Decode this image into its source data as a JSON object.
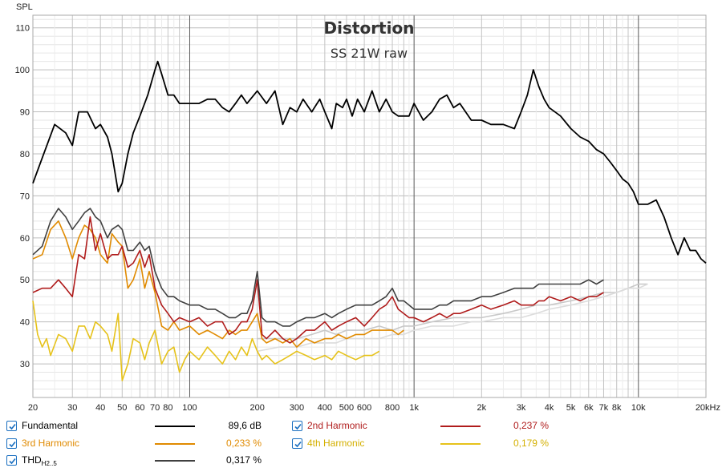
{
  "chart_data": {
    "type": "line",
    "title": "Distortion",
    "subtitle": "SS 21W raw",
    "ylabel": "SPL",
    "xlabel": "",
    "x_scale": "log",
    "xlim": [
      20,
      20000
    ],
    "ylim": [
      22,
      113
    ],
    "y_ticks": [
      30,
      40,
      50,
      60,
      70,
      80,
      90,
      100,
      110
    ],
    "x_ticks": [
      {
        "v": 20,
        "t": "20"
      },
      {
        "v": 30,
        "t": "30"
      },
      {
        "v": 40,
        "t": "40"
      },
      {
        "v": 50,
        "t": "50"
      },
      {
        "v": 60,
        "t": "60"
      },
      {
        "v": 70,
        "t": "70"
      },
      {
        "v": 80,
        "t": "80"
      },
      {
        "v": 100,
        "t": "100"
      },
      {
        "v": 200,
        "t": "200"
      },
      {
        "v": 300,
        "t": "300"
      },
      {
        "v": 400,
        "t": "400"
      },
      {
        "v": 500,
        "t": "500"
      },
      {
        "v": 600,
        "t": "600"
      },
      {
        "v": 800,
        "t": "800"
      },
      {
        "v": 1000,
        "t": "1k"
      },
      {
        "v": 2000,
        "t": "2k"
      },
      {
        "v": 3000,
        "t": "3k"
      },
      {
        "v": 4000,
        "t": "4k"
      },
      {
        "v": 5000,
        "t": "5k"
      },
      {
        "v": 6000,
        "t": "6k"
      },
      {
        "v": 7000,
        "t": "7k"
      },
      {
        "v": 8000,
        "t": "8k"
      },
      {
        "v": 10000,
        "t": "10k"
      },
      {
        "v": 20000,
        "t": "20kHz"
      }
    ],
    "grid": true,
    "legend_position": "bottom",
    "series": [
      {
        "name": "Fundamental",
        "color": "#000000",
        "value_label": "89,6 dB",
        "x": [
          20,
          22,
          25,
          28,
          30,
          32,
          35,
          38,
          40,
          43,
          45,
          48,
          50,
          53,
          56,
          60,
          65,
          70,
          72,
          75,
          80,
          85,
          90,
          100,
          110,
          120,
          130,
          140,
          150,
          160,
          170,
          180,
          200,
          220,
          240,
          260,
          280,
          300,
          320,
          350,
          380,
          400,
          430,
          450,
          480,
          500,
          530,
          560,
          600,
          650,
          700,
          750,
          800,
          850,
          900,
          950,
          1000,
          1100,
          1200,
          1300,
          1400,
          1500,
          1600,
          1800,
          2000,
          2200,
          2500,
          2800,
          3000,
          3200,
          3400,
          3600,
          3800,
          4000,
          4500,
          5000,
          5500,
          6000,
          6500,
          7000,
          7500,
          8000,
          8500,
          9000,
          9500,
          10000,
          10500,
          11000,
          12000,
          13000,
          14000,
          15000,
          16000,
          17000,
          18000,
          19000,
          20000
        ],
        "y": [
          73,
          79,
          87,
          85,
          82,
          90,
          90,
          86,
          87,
          84,
          80,
          71,
          73,
          80,
          85,
          89,
          94,
          100,
          102,
          99,
          94,
          94,
          92,
          92,
          92,
          93,
          93,
          91,
          90,
          92,
          94,
          92,
          95,
          92,
          95,
          87,
          91,
          90,
          93,
          90,
          93,
          90,
          86,
          92,
          91,
          93,
          89,
          93,
          90,
          95,
          90,
          93,
          90,
          89,
          89,
          89,
          92,
          88,
          90,
          93,
          94,
          91,
          92,
          88,
          88,
          87,
          87,
          86,
          90,
          94,
          100,
          96,
          93,
          91,
          89,
          86,
          84,
          83,
          81,
          80,
          78,
          76,
          74,
          73,
          71,
          68,
          68,
          68,
          69,
          65,
          60,
          56,
          60,
          57,
          57,
          55,
          54
        ]
      },
      {
        "name": "2nd Harmonic",
        "color": "#b01c1c",
        "value_label": "0,237 %",
        "x": [
          20,
          22,
          24,
          26,
          28,
          30,
          32,
          34,
          36,
          38,
          40,
          43,
          45,
          48,
          50,
          53,
          56,
          60,
          63,
          66,
          70,
          75,
          80,
          85,
          90,
          100,
          110,
          120,
          130,
          140,
          150,
          160,
          170,
          180,
          190,
          200,
          210,
          220,
          240,
          260,
          280,
          300,
          330,
          360,
          400,
          430,
          460,
          500,
          550,
          600,
          650,
          700,
          750,
          800,
          850,
          900,
          950,
          1000,
          1100,
          1200,
          1300,
          1400,
          1500,
          1600,
          1800,
          2000,
          2200,
          2500,
          2800,
          3000,
          3200,
          3400,
          3600,
          3800,
          4000,
          4500,
          5000,
          5500,
          6000,
          6500,
          7000
        ],
        "y": [
          47,
          48,
          48,
          50,
          48,
          46,
          56,
          55,
          65,
          57,
          61,
          55,
          56,
          56,
          58,
          53,
          54,
          57,
          53,
          56,
          48,
          44,
          42,
          40,
          41,
          40,
          41,
          39,
          40,
          40,
          37,
          38,
          40,
          40,
          43,
          50,
          37,
          36,
          38,
          36,
          35,
          36,
          38,
          38,
          40,
          38,
          39,
          40,
          41,
          39,
          41,
          43,
          44,
          46,
          43,
          42,
          41,
          41,
          40,
          41,
          42,
          41,
          42,
          42,
          43,
          44,
          43,
          44,
          45,
          44,
          44,
          44,
          45,
          45,
          46,
          45,
          46,
          45,
          46,
          46,
          47
        ]
      },
      {
        "name": "3rd Harmonic",
        "color": "#e08a00",
        "value_label": "0,233 %",
        "x": [
          20,
          22,
          24,
          26,
          28,
          30,
          32,
          34,
          36,
          38,
          40,
          43,
          45,
          48,
          50,
          53,
          56,
          60,
          63,
          66,
          70,
          75,
          80,
          85,
          90,
          100,
          110,
          120,
          130,
          140,
          150,
          160,
          170,
          180,
          190,
          200,
          210,
          220,
          240,
          260,
          280,
          300,
          330,
          360,
          400,
          430,
          460,
          500,
          550,
          600,
          650,
          700,
          750,
          800,
          850,
          900
        ],
        "y": [
          55,
          56,
          62,
          64,
          60,
          55,
          60,
          63,
          62,
          60,
          56,
          54,
          61,
          59,
          58,
          48,
          50,
          55,
          48,
          52,
          47,
          39,
          38,
          40,
          38,
          39,
          37,
          38,
          37,
          36,
          38,
          37,
          38,
          38,
          40,
          42,
          36,
          35,
          36,
          35,
          36,
          34,
          36,
          35,
          36,
          36,
          37,
          36,
          37,
          37,
          38,
          38,
          38,
          38,
          37,
          38
        ]
      },
      {
        "name": "4th Harmonic",
        "color": "#e6c21a",
        "value_label": "0,179 %",
        "x": [
          20,
          21,
          22,
          23,
          24,
          26,
          28,
          30,
          32,
          34,
          36,
          38,
          40,
          43,
          45,
          48,
          50,
          53,
          56,
          60,
          63,
          66,
          70,
          75,
          80,
          85,
          90,
          95,
          100,
          110,
          120,
          130,
          140,
          150,
          160,
          170,
          180,
          190,
          200,
          210,
          220,
          240,
          260,
          280,
          300,
          330,
          360,
          400,
          430,
          460,
          500,
          550,
          600,
          650,
          700
        ],
        "y": [
          45,
          37,
          34,
          36,
          32,
          37,
          36,
          33,
          39,
          39,
          36,
          40,
          39,
          37,
          33,
          42,
          26,
          30,
          36,
          35,
          31,
          35,
          38,
          30,
          33,
          34,
          28,
          31,
          33,
          31,
          34,
          32,
          30,
          33,
          31,
          34,
          32,
          36,
          33,
          31,
          32,
          30,
          31,
          32,
          33,
          32,
          31,
          32,
          31,
          33,
          32,
          31,
          32,
          32,
          33
        ]
      },
      {
        "name": "THD",
        "color": "#404040",
        "value_label": "0,317 %",
        "x": [
          20,
          22,
          24,
          26,
          28,
          30,
          32,
          34,
          36,
          38,
          40,
          43,
          45,
          48,
          50,
          53,
          56,
          60,
          63,
          66,
          70,
          75,
          80,
          85,
          90,
          100,
          110,
          120,
          130,
          140,
          150,
          160,
          170,
          180,
          190,
          200,
          210,
          220,
          240,
          260,
          280,
          300,
          330,
          360,
          400,
          430,
          460,
          500,
          550,
          600,
          650,
          700,
          750,
          800,
          850,
          900,
          950,
          1000,
          1100,
          1200,
          1300,
          1400,
          1500,
          1600,
          1800,
          2000,
          2200,
          2500,
          2800,
          3000,
          3200,
          3400,
          3600,
          3800,
          4000,
          4500,
          5000,
          5500,
          6000,
          6500,
          7000
        ],
        "y": [
          56,
          58,
          64,
          67,
          65,
          62,
          64,
          66,
          67,
          65,
          64,
          60,
          62,
          63,
          62,
          57,
          57,
          59,
          57,
          58,
          52,
          48,
          46,
          46,
          45,
          44,
          44,
          43,
          43,
          42,
          41,
          41,
          42,
          42,
          45,
          52,
          41,
          40,
          40,
          39,
          39,
          40,
          41,
          41,
          42,
          41,
          42,
          43,
          44,
          44,
          44,
          45,
          46,
          48,
          45,
          45,
          44,
          43,
          43,
          43,
          44,
          44,
          45,
          45,
          45,
          46,
          46,
          47,
          48,
          48,
          48,
          48,
          49,
          49,
          49,
          49,
          49,
          49,
          50,
          49,
          50
        ]
      },
      {
        "name": "",
        "color": "#c8c8c8",
        "value_label": "",
        "x": [
          200,
          250,
          300,
          350,
          400,
          450,
          500,
          600,
          700,
          800,
          900,
          1000,
          1200,
          1500,
          1800,
          2000,
          2500,
          3000,
          3500,
          4000,
          5000,
          6000,
          7000,
          8000,
          9000,
          10000,
          11000
        ],
        "y": [
          36,
          36,
          36,
          37,
          38,
          37,
          38,
          38,
          39,
          38,
          39,
          39,
          40,
          41,
          41,
          41,
          42,
          43,
          44,
          44,
          45,
          46,
          47,
          47,
          48,
          49,
          49
        ]
      },
      {
        "name": "",
        "color": "#dcdcdc",
        "value_label": "",
        "x": [
          200,
          250,
          300,
          350,
          400,
          450,
          500,
          600,
          700,
          800,
          900,
          1000,
          1200,
          1500,
          1800,
          2000,
          2500,
          3000,
          3500,
          4000,
          5000,
          6000,
          7000,
          8000,
          9000,
          10000,
          11000
        ],
        "y": [
          33,
          34,
          34,
          35,
          35,
          35,
          36,
          36,
          36,
          37,
          37,
          38,
          39,
          39,
          40,
          40,
          41,
          41,
          42,
          43,
          44,
          45,
          46,
          47,
          48,
          48,
          49
        ]
      }
    ]
  },
  "legend": {
    "items": [
      {
        "label": "Fundamental",
        "sub": "",
        "value": "89,6 dB",
        "color": "#000000",
        "text_color": "#000000"
      },
      {
        "label": "2nd Harmonic",
        "sub": "",
        "value": "0,237 %",
        "color": "#b01c1c",
        "text_color": "#b01c1c"
      },
      {
        "label": "3rd Harmonic",
        "sub": "",
        "value": "0,233 %",
        "color": "#e08a00",
        "text_color": "#e08a00"
      },
      {
        "label": "4th Harmonic",
        "sub": "",
        "value": "0,179 %",
        "color": "#e6c21a",
        "text_color": "#e6c21a"
      },
      {
        "label": "THD",
        "sub": "H2..5",
        "value": "0,317 %",
        "color": "#404040",
        "text_color": "#000000"
      }
    ]
  }
}
